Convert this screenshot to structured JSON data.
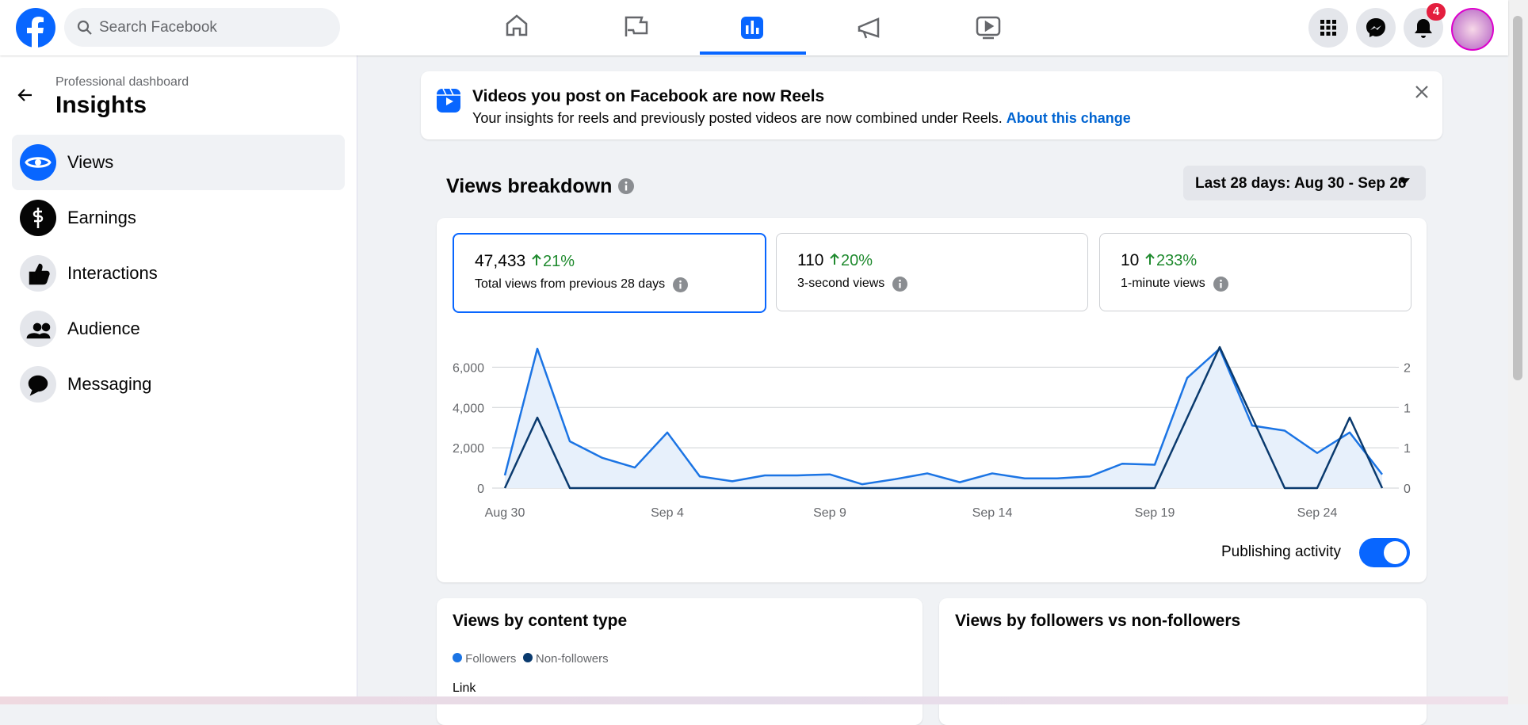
{
  "header": {
    "search_placeholder": "Search Facebook",
    "notification_count": "4"
  },
  "sidebar": {
    "subtitle": "Professional dashboard",
    "title": "Insights",
    "items": [
      "Views",
      "Earnings",
      "Interactions",
      "Audience",
      "Messaging"
    ]
  },
  "banner": {
    "title": "Videos you post on Facebook are now Reels",
    "text": "Your insights for reels and previously posted videos are now combined under Reels.",
    "link": "About this change"
  },
  "breakdown": {
    "title": "Views breakdown",
    "date_range": "Last 28 days: Aug 30 - Sep 26",
    "stats": [
      {
        "value": "47,433",
        "change": "21%",
        "label": "Total views from previous 28 days"
      },
      {
        "value": "110",
        "change": "20%",
        "label": "3-second views"
      },
      {
        "value": "10",
        "change": "233%",
        "label": "1-minute views"
      }
    ],
    "toggle_label": "Publishing activity"
  },
  "chart_data": {
    "type": "line",
    "categories": [
      "Aug 30",
      null,
      null,
      null,
      null,
      "Sep 4",
      null,
      null,
      null,
      null,
      "Sep 9",
      null,
      null,
      null,
      null,
      "Sep 14",
      null,
      null,
      null,
      null,
      "Sep 19",
      null,
      null,
      null,
      null,
      "Sep 24",
      null,
      null
    ],
    "series": [
      {
        "color": "#1b74e4",
        "fill": "#e7f0fb",
        "values": [
          630,
          6920,
          2320,
          1500,
          1020,
          2760,
          580,
          340,
          630,
          630,
          680,
          190,
          440,
          730,
          290,
          730,
          480,
          480,
          580,
          1210,
          1160,
          5470,
          6920,
          3100,
          2850,
          1740,
          2760,
          680
        ]
      },
      {
        "color": "#0a3a6e",
        "axis": "y2",
        "values": [
          0,
          1,
          0,
          0,
          0,
          0,
          0,
          0,
          0,
          0,
          0,
          0,
          0,
          0,
          0,
          0,
          0,
          0,
          0,
          0,
          0,
          1,
          2,
          1,
          0,
          0,
          1,
          0
        ]
      }
    ],
    "ylim": [
      0,
      7000
    ],
    "yticks": [
      0,
      {
        "value": 2000,
        "label": "2,000"
      },
      {
        "value": 4000,
        "label": "4,000"
      },
      {
        "value": 6000,
        "label": "6,000"
      }
    ],
    "y2lim": [
      0,
      2
    ],
    "y2ticks": [
      0,
      {
        "value": 0.571,
        "label": "1"
      },
      {
        "value": 1.143,
        "label": "1"
      },
      {
        "value": 1.714,
        "label": "2"
      }
    ],
    "grid": true
  },
  "lower": {
    "content_type_title": "Views by content type",
    "legend": [
      "Followers",
      "Non-followers"
    ],
    "first_row": "Link",
    "followers_title": "Views by followers vs non-followers"
  }
}
